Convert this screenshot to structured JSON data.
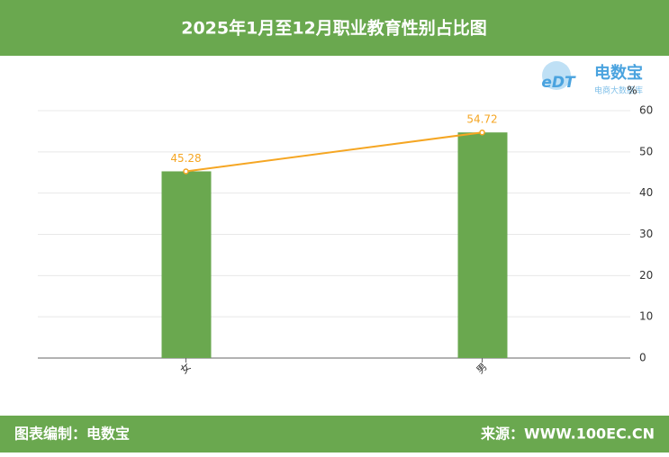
{
  "header": {
    "title": "2025年1月至12月职业教育性别占比图"
  },
  "logo": {
    "name": "电数宝",
    "tagline": "电商大数据库",
    "mark": "eDT"
  },
  "chart_data": {
    "type": "bar",
    "unit": "%",
    "categories": [
      "女",
      "男"
    ],
    "series": [
      {
        "type": "bar",
        "color": "#6aa84f",
        "values": [
          45.28,
          54.72
        ]
      },
      {
        "type": "line",
        "color": "#f5a623",
        "values": [
          45.28,
          54.72
        ]
      }
    ],
    "ylim": [
      0,
      60
    ],
    "yticks": [
      0,
      10,
      20,
      30,
      40,
      50,
      60
    ],
    "grid": true
  },
  "footer": {
    "left": "图表编制：电数宝",
    "right": "来源：WWW.100EC.CN"
  }
}
